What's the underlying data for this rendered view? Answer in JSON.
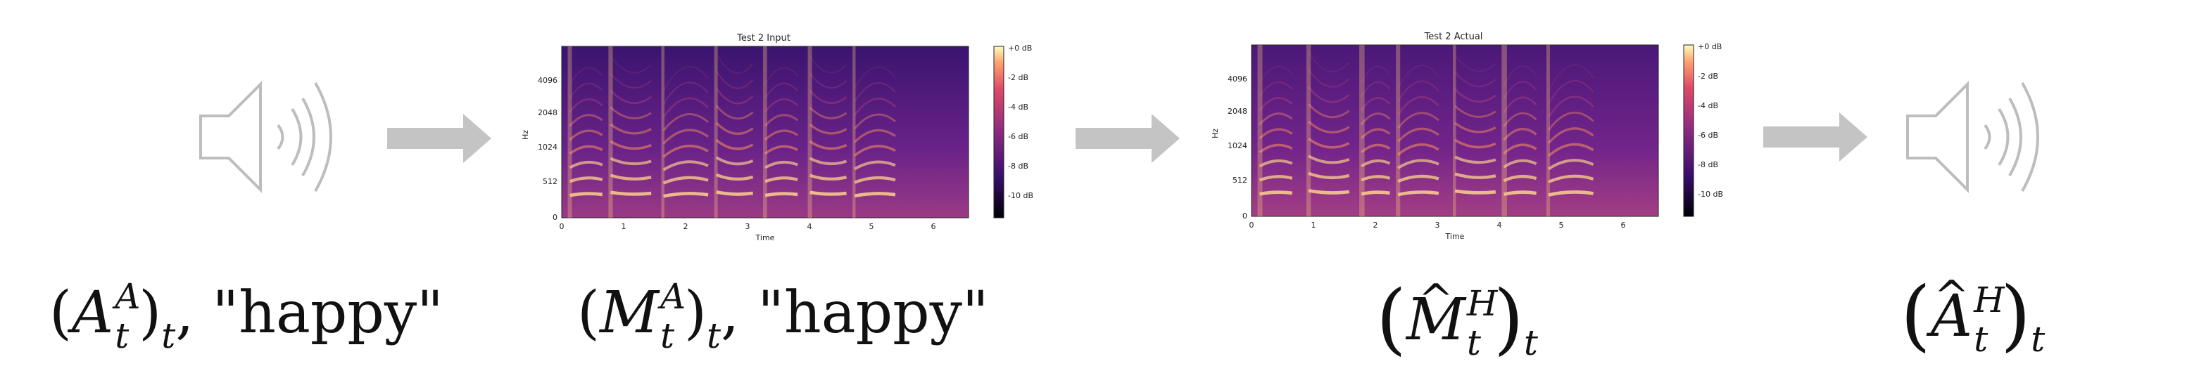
{
  "spectrograms": [
    {
      "title": "Test 2 Input",
      "ylabel": "Hz",
      "xlabel": "Time",
      "yticks": [
        "0",
        "512",
        "1024",
        "2048",
        "4096"
      ],
      "xticks": [
        "0",
        "1",
        "2",
        "3",
        "4",
        "5",
        "6"
      ],
      "colorbar_ticks": [
        "+0 dB",
        "-2 dB",
        "-4 dB",
        "-6 dB",
        "-8 dB",
        "-10 dB"
      ]
    },
    {
      "title": "Test 2 Actual",
      "ylabel": "Hz",
      "xlabel": "Time",
      "yticks": [
        "0",
        "512",
        "1024",
        "2048",
        "4096"
      ],
      "xticks": [
        "0",
        "1",
        "2",
        "3",
        "4",
        "5",
        "6"
      ],
      "colorbar_ticks": [
        "+0 dB",
        "-2 dB",
        "-4 dB",
        "-6 dB",
        "-8 dB",
        "-10 dB"
      ]
    }
  ],
  "labels": {
    "l1_base": "A",
    "l1_sup": "A",
    "l1_sub": "t",
    "l1_outer_sub": "t",
    "l1_word": "\"happy\"",
    "l2_base": "M",
    "l2_sup": "A",
    "l2_sub": "t",
    "l2_outer_sub": "t",
    "l2_word": "\"happy\"",
    "l3_base": "M",
    "l3_sup": "H",
    "l3_sub": "t",
    "l3_outer_sub": "t",
    "l4_base": "A",
    "l4_sup": "H",
    "l4_sub": "t",
    "l4_outer_sub": "t"
  },
  "icons": [
    "speaker-icon",
    "right-arrow-icon",
    "spectrogram-image",
    "right-arrow-icon",
    "spectrogram-image",
    "right-arrow-icon",
    "speaker-icon"
  ],
  "colors": {
    "icon_gray": "#c0c0c0",
    "spec_dark": "#1a0b3b",
    "spec_mid": "#8a2a8a",
    "spec_bright": "#f7a35a"
  }
}
